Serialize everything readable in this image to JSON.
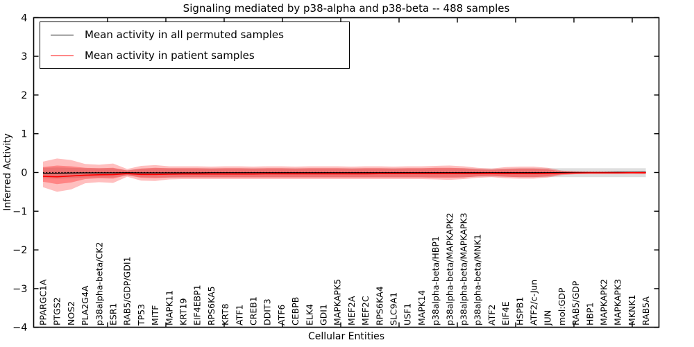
{
  "chart_data": {
    "type": "line",
    "title": "Signaling mediated by p38-alpha and p38-beta -- 488 samples",
    "xlabel": "Cellular Entities",
    "ylabel": "Inferred Activity",
    "ylim": [
      -4,
      4
    ],
    "yticks": [
      4,
      3,
      2,
      1,
      0,
      -1,
      -2,
      -3,
      -4
    ],
    "grid": false,
    "legend_position": "upper left",
    "categories": [
      "PPARGC1A",
      "PTGS2",
      "NOS2",
      "PLA2G4A",
      "p38alpha-beta/CK2",
      "ESR1",
      "RAB5/GDP/GDI1",
      "TP53",
      "MITF",
      "MAPK11",
      "KRT19",
      "EIF4EBP1",
      "RPS6KA5",
      "KRT8",
      "ATF1",
      "CREB1",
      "DDIT3",
      "ATF6",
      "CEBPB",
      "ELK4",
      "GDI1",
      "MAPKAPK5",
      "MEF2A",
      "MEF2C",
      "RPS6KA4",
      "SLC9A1",
      "USF1",
      "MAPK14",
      "p38alpha-beta/HBP1",
      "p38alpha-beta/MAPKAPK2",
      "p38alpha-beta/MAPKAPK3",
      "p38alpha-beta/MNK1",
      "ATF2",
      "EIF4E",
      "HSPB1",
      "ATF2/c-Jun",
      "JUN",
      "mol:GDP",
      "RAB5/GDP",
      "HBP1",
      "MAPKAPK2",
      "MAPKAPK3",
      "MKNK1",
      "RAB5A"
    ],
    "series": [
      {
        "name": "Mean activity in all permuted samples",
        "color": "#000000",
        "style": "solid",
        "values": [
          -0.02,
          -0.02,
          -0.015,
          -0.01,
          -0.01,
          -0.01,
          -0.005,
          -0.01,
          -0.01,
          -0.01,
          -0.01,
          -0.01,
          -0.005,
          -0.005,
          -0.005,
          -0.005,
          -0.005,
          -0.005,
          -0.005,
          -0.005,
          -0.005,
          -0.005,
          -0.005,
          -0.005,
          -0.005,
          -0.005,
          -0.005,
          -0.005,
          -0.005,
          -0.005,
          -0.005,
          -0.005,
          -0.005,
          -0.005,
          -0.005,
          -0.005,
          -0.005,
          0,
          0,
          0,
          0,
          0.005,
          0.005,
          0.005
        ]
      },
      {
        "name": "Mean activity in patient samples",
        "color": "#ff0000",
        "style": "solid",
        "values": [
          -0.1,
          -0.11,
          -0.09,
          -0.07,
          -0.06,
          -0.055,
          -0.03,
          -0.05,
          -0.05,
          -0.045,
          -0.04,
          -0.04,
          -0.04,
          -0.04,
          -0.04,
          -0.04,
          -0.035,
          -0.035,
          -0.035,
          -0.035,
          -0.035,
          -0.035,
          -0.035,
          -0.035,
          -0.03,
          -0.03,
          -0.03,
          -0.03,
          -0.03,
          -0.03,
          -0.03,
          -0.03,
          -0.025,
          -0.03,
          -0.03,
          -0.03,
          -0.025,
          -0.02,
          -0.015,
          -0.01,
          -0.01,
          -0.01,
          -0.005,
          -0.005
        ]
      }
    ],
    "reference_line": {
      "y": 0,
      "style": "dotted",
      "color": "#000000"
    },
    "bands": [
      {
        "name": "permuted-samples-range",
        "color": "rgba(0,0,0,0.13)",
        "hi": [
          0.12,
          0.13,
          0.12,
          0.11,
          0.11,
          0.11,
          0.06,
          0.1,
          0.11,
          0.11,
          0.11,
          0.11,
          0.11,
          0.11,
          0.11,
          0.11,
          0.11,
          0.11,
          0.11,
          0.11,
          0.11,
          0.11,
          0.11,
          0.11,
          0.11,
          0.11,
          0.11,
          0.11,
          0.11,
          0.11,
          0.11,
          0.1,
          0.1,
          0.1,
          0.11,
          0.11,
          0.11,
          0.11,
          0.11,
          0.11,
          0.11,
          0.11,
          0.11,
          0.11
        ],
        "lo": [
          -0.15,
          -0.16,
          -0.15,
          -0.13,
          -0.13,
          -0.13,
          -0.08,
          -0.12,
          -0.13,
          -0.13,
          -0.12,
          -0.12,
          -0.12,
          -0.12,
          -0.12,
          -0.12,
          -0.12,
          -0.12,
          -0.12,
          -0.12,
          -0.12,
          -0.12,
          -0.12,
          -0.12,
          -0.12,
          -0.12,
          -0.12,
          -0.12,
          -0.12,
          -0.12,
          -0.12,
          -0.11,
          -0.11,
          -0.11,
          -0.12,
          -0.12,
          -0.12,
          -0.12,
          -0.12,
          -0.12,
          -0.12,
          -0.12,
          -0.12,
          -0.12
        ]
      },
      {
        "name": "patient-samples-range-outer",
        "color": "rgba(255,0,0,0.25)",
        "hi": [
          0.28,
          0.36,
          0.32,
          0.22,
          0.2,
          0.23,
          0.09,
          0.17,
          0.19,
          0.16,
          0.16,
          0.16,
          0.15,
          0.16,
          0.16,
          0.15,
          0.16,
          0.16,
          0.15,
          0.16,
          0.16,
          0.16,
          0.15,
          0.16,
          0.16,
          0.15,
          0.16,
          0.16,
          0.17,
          0.18,
          0.16,
          0.12,
          0.1,
          0.14,
          0.15,
          0.15,
          0.12,
          0.05,
          0.03,
          0.025,
          0.025,
          0.025,
          0.025,
          0.03
        ],
        "lo": [
          -0.38,
          -0.5,
          -0.44,
          -0.28,
          -0.25,
          -0.27,
          -0.11,
          -0.21,
          -0.22,
          -0.18,
          -0.17,
          -0.17,
          -0.17,
          -0.17,
          -0.17,
          -0.17,
          -0.17,
          -0.17,
          -0.17,
          -0.17,
          -0.17,
          -0.17,
          -0.17,
          -0.17,
          -0.17,
          -0.17,
          -0.17,
          -0.17,
          -0.18,
          -0.19,
          -0.17,
          -0.14,
          -0.12,
          -0.15,
          -0.16,
          -0.16,
          -0.13,
          -0.07,
          -0.045,
          -0.04,
          -0.04,
          -0.04,
          -0.04,
          -0.045
        ]
      },
      {
        "name": "patient-samples-range-inner",
        "color": "rgba(255,0,0,0.30)",
        "hi": [
          0.14,
          0.18,
          0.16,
          0.12,
          0.11,
          0.12,
          0.05,
          0.1,
          0.12,
          0.11,
          0.11,
          0.11,
          0.1,
          0.11,
          0.11,
          0.1,
          0.11,
          0.11,
          0.1,
          0.11,
          0.11,
          0.11,
          0.1,
          0.11,
          0.11,
          0.1,
          0.11,
          0.11,
          0.12,
          0.12,
          0.11,
          0.08,
          0.07,
          0.09,
          0.1,
          0.1,
          0.08,
          0.03,
          0.02,
          0.015,
          0.015,
          0.015,
          0.015,
          0.02
        ],
        "lo": [
          -0.24,
          -0.3,
          -0.26,
          -0.17,
          -0.15,
          -0.16,
          -0.07,
          -0.14,
          -0.15,
          -0.13,
          -0.13,
          -0.13,
          -0.13,
          -0.13,
          -0.13,
          -0.13,
          -0.13,
          -0.13,
          -0.13,
          -0.13,
          -0.13,
          -0.13,
          -0.13,
          -0.13,
          -0.13,
          -0.13,
          -0.13,
          -0.13,
          -0.14,
          -0.14,
          -0.13,
          -0.1,
          -0.09,
          -0.11,
          -0.12,
          -0.12,
          -0.1,
          -0.05,
          -0.03,
          -0.025,
          -0.025,
          -0.025,
          -0.025,
          -0.03
        ]
      }
    ]
  }
}
